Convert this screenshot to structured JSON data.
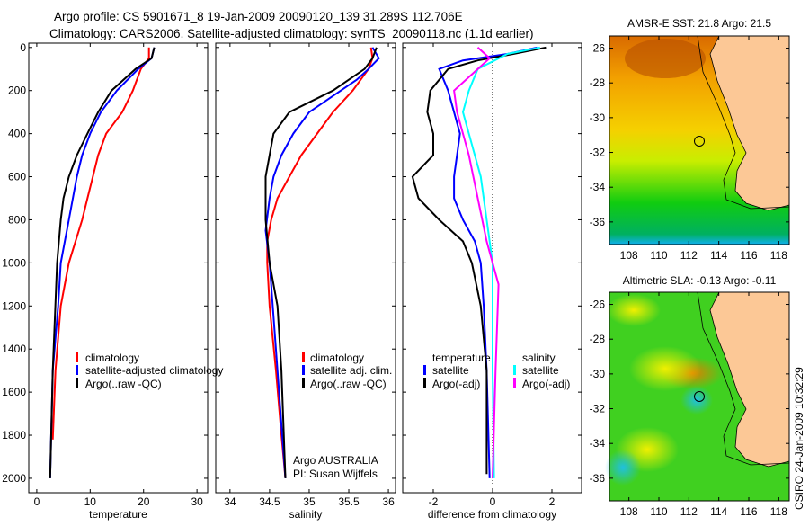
{
  "title_line1": "Argo profile: CS 5901671_8 19-Jan-2009 20090120_139 31.289S 112.706E",
  "title_line2": "Climatology: CARS2006. Satellite-adjusted climatology: synTS_20090118.nc (1.1d earlier)",
  "watermark": "CSIRO 24-Jan-2009 10:32:29",
  "colors": {
    "climatology": "#ff0000",
    "satellite": "#0000ff",
    "argo": "#000000",
    "sal_satellite": "#00ffff",
    "sal_argo": "#ff00ff"
  },
  "chart_data": [
    {
      "type": "line",
      "id": "temperature",
      "xlabel": "temperature",
      "ylabel": "",
      "xlim": [
        -1.5,
        32
      ],
      "ylim": [
        2067,
        -20
      ],
      "xticks": [
        0,
        10,
        20,
        30
      ],
      "yticks": [
        0,
        200,
        400,
        600,
        800,
        1000,
        1200,
        1400,
        1600,
        1800,
        2000
      ],
      "legend": [
        "climatology",
        "satellite-adjusted climatology",
        "Argo(..raw -QC)"
      ],
      "series": [
        {
          "name": "climatology",
          "color": "#ff0000",
          "points": [
            [
              21,
              0
            ],
            [
              21,
              50
            ],
            [
              19.5,
              100
            ],
            [
              18,
              200
            ],
            [
              16,
              300
            ],
            [
              13,
              400
            ],
            [
              11.5,
              500
            ],
            [
              10.5,
              600
            ],
            [
              9.5,
              700
            ],
            [
              8.5,
              800
            ],
            [
              6,
              1000
            ],
            [
              4.5,
              1200
            ],
            [
              3.5,
              1500
            ],
            [
              3,
              1820
            ]
          ]
        },
        {
          "name": "satellite-adjusted climatology",
          "color": "#0000ff",
          "points": [
            [
              22,
              0
            ],
            [
              21.5,
              50
            ],
            [
              19,
              100
            ],
            [
              15,
              200
            ],
            [
              12,
              300
            ],
            [
              10,
              400
            ],
            [
              8.5,
              500
            ],
            [
              7.5,
              600
            ],
            [
              6,
              800
            ],
            [
              4.5,
              1000
            ],
            [
              4,
              1200
            ],
            [
              3,
              1500
            ],
            [
              2.5,
              2000
            ]
          ]
        },
        {
          "name": "Argo(..raw -QC)",
          "color": "#000000",
          "points": [
            [
              22,
              0
            ],
            [
              21.5,
              50
            ],
            [
              18.5,
              100
            ],
            [
              14,
              200
            ],
            [
              11.5,
              300
            ],
            [
              9.5,
              400
            ],
            [
              7.5,
              500
            ],
            [
              6,
              600
            ],
            [
              5,
              700
            ],
            [
              4.5,
              800
            ],
            [
              3.8,
              1000
            ],
            [
              3,
              1500
            ],
            [
              2.5,
              2000
            ]
          ]
        }
      ]
    },
    {
      "type": "line",
      "id": "salinity",
      "xlabel": "salinity",
      "xlim": [
        33.82,
        36.09
      ],
      "ylim": [
        2067,
        -20
      ],
      "xticks": [
        34,
        34.5,
        35,
        35.5,
        36
      ],
      "xticklabels": [
        "34",
        "34.5",
        "35",
        "35.5",
        "36"
      ],
      "legend": [
        "climatology",
        "satellite adj. clim.",
        "Argo(..raw -QC)"
      ],
      "annotations": [
        "Argo AUSTRALIA",
        "PI: Susan Wijffels"
      ],
      "series": [
        {
          "name": "climatology",
          "color": "#ff0000",
          "points": [
            [
              35.78,
              0
            ],
            [
              35.8,
              50
            ],
            [
              35.75,
              100
            ],
            [
              35.55,
              200
            ],
            [
              35.3,
              300
            ],
            [
              35.1,
              400
            ],
            [
              34.9,
              500
            ],
            [
              34.75,
              600
            ],
            [
              34.6,
              700
            ],
            [
              34.52,
              800
            ],
            [
              34.47,
              900
            ],
            [
              34.47,
              1000
            ],
            [
              34.5,
              1200
            ],
            [
              34.58,
              1500
            ],
            [
              34.65,
              1800
            ],
            [
              34.7,
              2000
            ]
          ]
        },
        {
          "name": "satellite adj. clim.",
          "color": "#0000ff",
          "points": [
            [
              35.8,
              0
            ],
            [
              35.88,
              50
            ],
            [
              35.75,
              100
            ],
            [
              35.6,
              150
            ],
            [
              35.4,
              200
            ],
            [
              35.0,
              300
            ],
            [
              34.8,
              400
            ],
            [
              34.65,
              500
            ],
            [
              34.55,
              600
            ],
            [
              34.5,
              700
            ],
            [
              34.45,
              850
            ],
            [
              34.5,
              1000
            ],
            [
              34.6,
              1500
            ],
            [
              34.7,
              2000
            ]
          ]
        },
        {
          "name": "Argo(..raw -QC)",
          "color": "#000000",
          "points": [
            [
              35.85,
              0
            ],
            [
              35.8,
              50
            ],
            [
              35.7,
              100
            ],
            [
              35.3,
              200
            ],
            [
              34.75,
              300
            ],
            [
              34.55,
              400
            ],
            [
              34.5,
              500
            ],
            [
              34.45,
              600
            ],
            [
              34.45,
              800
            ],
            [
              34.5,
              1000
            ],
            [
              34.6,
              1200
            ],
            [
              34.65,
              1500
            ],
            [
              34.7,
              2000
            ]
          ]
        }
      ]
    },
    {
      "type": "line",
      "id": "difference",
      "xlabel": "difference from climatology",
      "xlim": [
        -3.03,
        3.0
      ],
      "ylim": [
        2067,
        -20
      ],
      "xticks": [
        -2,
        0,
        2
      ],
      "legend_titles": [
        "temperature",
        "salinity"
      ],
      "legend": [
        "satellite",
        "Argo(-adj)",
        "satellite",
        "Argo(-adj)"
      ],
      "series": [
        {
          "name": "temperature satellite",
          "color": "#0000ff",
          "points": [
            [
              1.5,
              0
            ],
            [
              0.5,
              30
            ],
            [
              -1,
              60
            ],
            [
              -1.8,
              100
            ],
            [
              -1.5,
              200
            ],
            [
              -1.3,
              300
            ],
            [
              -1.1,
              400
            ],
            [
              -1.2,
              500
            ],
            [
              -1.3,
              600
            ],
            [
              -1.3,
              700
            ],
            [
              -1,
              800
            ],
            [
              -0.6,
              900
            ],
            [
              -0.4,
              1000
            ],
            [
              -0.3,
              1200
            ],
            [
              -0.2,
              1500
            ],
            [
              -0.1,
              2000
            ]
          ]
        },
        {
          "name": "temperature Argo(-adj)",
          "color": "#000000",
          "points": [
            [
              1.8,
              0
            ],
            [
              0.7,
              30
            ],
            [
              -0.5,
              60
            ],
            [
              -1.5,
              100
            ],
            [
              -2.1,
              200
            ],
            [
              -2.2,
              300
            ],
            [
              -2.0,
              400
            ],
            [
              -2.0,
              500
            ],
            [
              -2.7,
              600
            ],
            [
              -2.5,
              700
            ],
            [
              -1.8,
              800
            ],
            [
              -1.0,
              900
            ],
            [
              -0.7,
              1000
            ],
            [
              -0.4,
              1200
            ],
            [
              -0.2,
              1500
            ],
            [
              -0.2,
              1980
            ]
          ]
        },
        {
          "name": "salinity satellite",
          "color": "#00ffff",
          "points": [
            [
              1.6,
              0
            ],
            [
              0.5,
              30
            ],
            [
              -0.5,
              100
            ],
            [
              -0.8,
              200
            ],
            [
              -1.0,
              300
            ],
            [
              -0.8,
              400
            ],
            [
              -0.6,
              500
            ],
            [
              -0.4,
              600
            ],
            [
              -0.2,
              800
            ],
            [
              0,
              1000
            ],
            [
              0,
              1500
            ],
            [
              0.05,
              2000
            ]
          ]
        },
        {
          "name": "salinity Argo(-adj)",
          "color": "#ff00ff",
          "points": [
            [
              -0.5,
              0
            ],
            [
              -0.1,
              50
            ],
            [
              -0.5,
              100
            ],
            [
              -1.3,
              200
            ],
            [
              -1.2,
              300
            ],
            [
              -1.0,
              400
            ],
            [
              -0.8,
              500
            ],
            [
              -0.5,
              700
            ],
            [
              -0.2,
              900
            ],
            [
              0.2,
              1100
            ],
            [
              0.1,
              1500
            ],
            [
              0,
              2000
            ]
          ]
        }
      ]
    },
    {
      "type": "heatmap",
      "id": "sst_map",
      "title": "AMSR-E SST: 21.8 Argo: 21.5",
      "xlim": [
        106.7,
        118.7
      ],
      "ylim": [
        -37.3,
        -25.3
      ],
      "xticks": [
        108,
        110,
        112,
        114,
        116,
        118
      ],
      "yticks": [
        -26,
        -28,
        -30,
        -32,
        -34,
        -36
      ],
      "marker": [
        112.706,
        -31.289
      ]
    },
    {
      "type": "heatmap",
      "id": "sla_map",
      "title": "Altimetric SLA: -0.13 Argo: -0.11",
      "xlim": [
        106.7,
        118.7
      ],
      "ylim": [
        -37.3,
        -25.3
      ],
      "xticks": [
        108,
        110,
        112,
        114,
        116,
        118
      ],
      "yticks": [
        -26,
        -28,
        -30,
        -32,
        -34,
        -36
      ],
      "marker": [
        112.706,
        -31.289
      ]
    }
  ]
}
